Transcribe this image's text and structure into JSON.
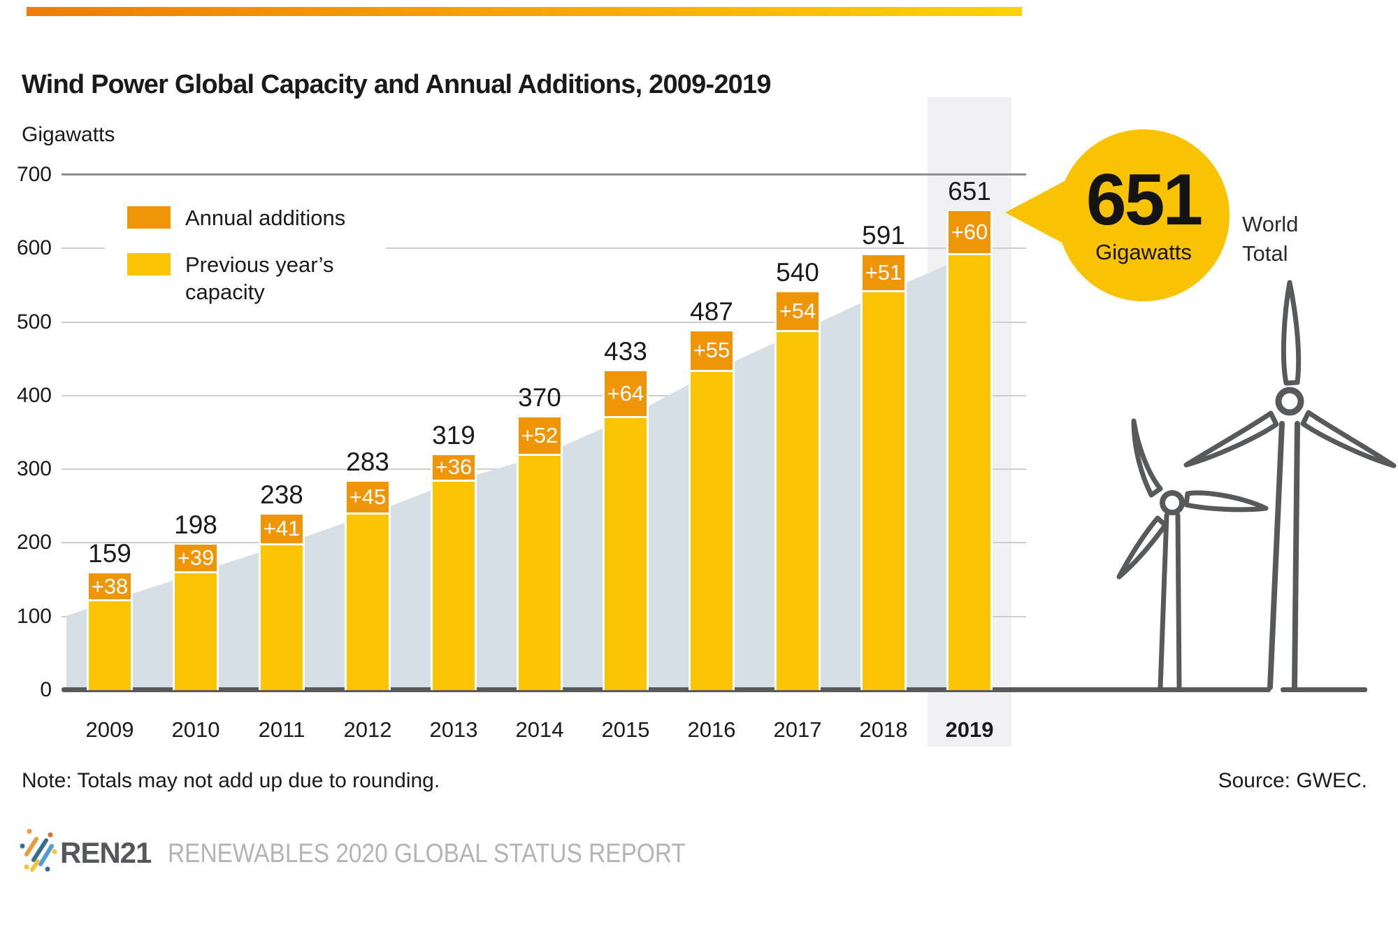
{
  "header": {
    "title": "Wind Power Global Capacity and Annual Additions, 2009-2019",
    "unit_label": "Gigawatts"
  },
  "legend": {
    "annual_label": "Annual additions",
    "previous_label_line1": "Previous year’s",
    "previous_label_line2": "capacity"
  },
  "chart_data": {
    "type": "bar",
    "subtype": "stacked-with-background-area",
    "title": "Wind Power Global Capacity and Annual Additions, 2009-2019",
    "ylabel": "Gigawatts",
    "ylim": [
      0,
      700
    ],
    "yticks": [
      0,
      100,
      200,
      300,
      400,
      500,
      600,
      700
    ],
    "grid": "horizontal",
    "legend_position": "top-left-inside",
    "categories": [
      "2009",
      "2010",
      "2011",
      "2012",
      "2013",
      "2014",
      "2015",
      "2016",
      "2017",
      "2018",
      "2019"
    ],
    "totals": [
      159,
      198,
      238,
      283,
      319,
      370,
      433,
      487,
      540,
      591,
      651
    ],
    "series": [
      {
        "name": "Previous year’s capacity",
        "values": [
          121,
          159,
          197,
          238,
          283,
          318,
          369,
          432,
          486,
          540,
          591
        ]
      },
      {
        "name": "Annual additions",
        "values": [
          38,
          39,
          41,
          45,
          36,
          52,
          64,
          55,
          54,
          51,
          60
        ]
      }
    ],
    "addition_labels": [
      "+38",
      "+39",
      "+41",
      "+45",
      "+36",
      "+52",
      "+64",
      "+55",
      "+54",
      "+51",
      "+60"
    ],
    "highlight_category": "2019",
    "background_area": "polyline through previous-year capacity values behind bars"
  },
  "callout": {
    "value": "651",
    "unit": "Gigawatts",
    "world_line1": "World",
    "world_line2": "Total"
  },
  "note": {
    "text": "Note: Totals may not add up due to rounding."
  },
  "source": {
    "text": "Source: GWEC."
  },
  "footer": {
    "brand": "REN21",
    "report": "RENEWABLES 2020 GLOBAL STATUS REPORT"
  },
  "colors": {
    "annual_orange": "#EE9508",
    "capacity_yellow": "#FBC505",
    "area_blue": "#D6DFE5",
    "highlight_band": "#F1F1F3",
    "callout_yellow": "#F9C303",
    "dark_gray": "#58595B",
    "gridline": "#CDCDCF",
    "gridline_top": "#8F9092",
    "footer_gray": "#B4B4B6",
    "header_gradient_left": "#EF7D00",
    "header_gradient_right": "#FFD300"
  }
}
